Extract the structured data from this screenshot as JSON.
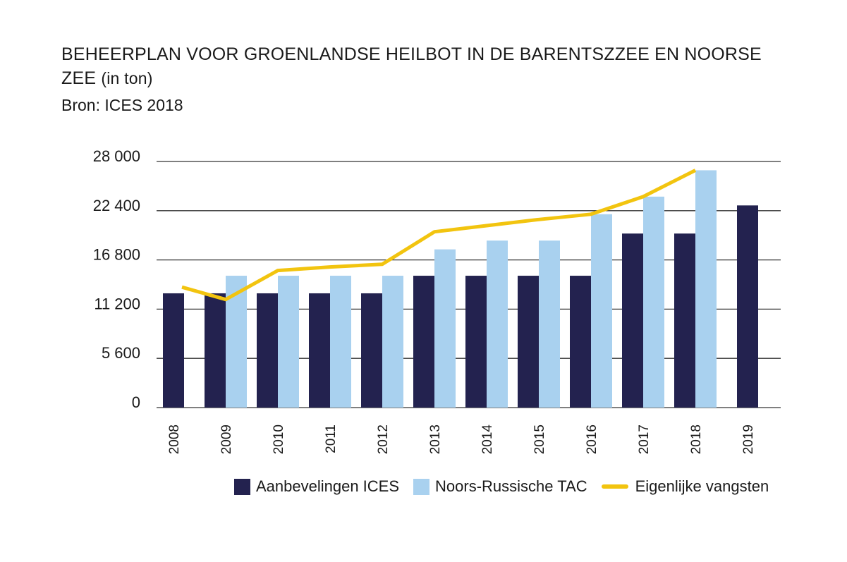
{
  "title": {
    "line1": "BEHEERPLAN VOOR GROENLANDSE HEILBOT IN DE BARENTSZZEE EN NOORSE",
    "line2_main": "ZEE",
    "line2_suffix": "(in ton)",
    "source": "Bron: ICES 2018"
  },
  "colors": {
    "ices": "#23224f",
    "tac": "#a9d1ef",
    "catch": "#f2c40f",
    "grid": "#333333"
  },
  "chart_data": {
    "type": "bar",
    "categories": [
      "2008",
      "2009",
      "2010",
      "2011",
      "2012",
      "2013",
      "2014",
      "2015",
      "2016",
      "2017",
      "2018",
      "2019"
    ],
    "ylim": [
      0,
      28000
    ],
    "yticks": [
      0,
      5600,
      11200,
      16800,
      22400,
      28000
    ],
    "ytick_labels": [
      "0",
      "5 600",
      "11 200",
      "16 800",
      "22 400",
      "28 000"
    ],
    "grid": "horizontal",
    "legend_position": "bottom",
    "series": [
      {
        "name": "Aanbevelingen ICES",
        "kind": "bar",
        "values": [
          13000,
          13000,
          13000,
          13000,
          13000,
          15000,
          15000,
          15000,
          15000,
          19800,
          19800,
          23000
        ]
      },
      {
        "name": "Noors-Russische TAC",
        "kind": "bar",
        "values": [
          null,
          15000,
          15000,
          15000,
          15000,
          18000,
          19000,
          19000,
          22000,
          24000,
          27000,
          null
        ]
      },
      {
        "name": "Eigenlijke vangsten",
        "kind": "line",
        "values": [
          13700,
          12300,
          15600,
          16000,
          16300,
          20000,
          20700,
          21400,
          22000,
          24000,
          27000,
          null
        ]
      }
    ]
  },
  "legend": {
    "items": [
      "Aanbevelingen ICES",
      "Noors-Russische TAC",
      "Eigenlijke vangsten"
    ]
  }
}
